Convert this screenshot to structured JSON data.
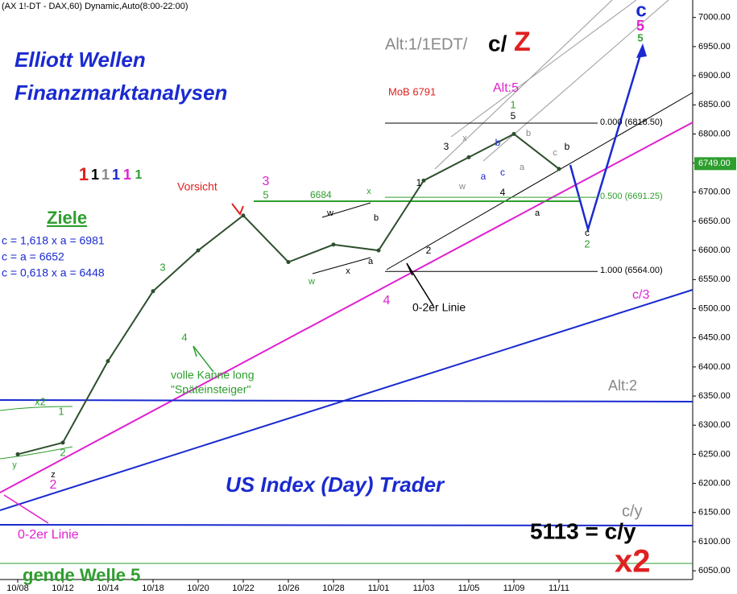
{
  "chart_data": {
    "type": "line",
    "header": "(AX 1!-DT - DAX,60) Dynamic,Auto(8:00-22:00)",
    "categories": [
      "10/08",
      "10/12",
      "10/14",
      "10/18",
      "10/20",
      "10/22",
      "10/26",
      "10/28",
      "11/01",
      "11/03",
      "11/05",
      "11/09",
      "11/11"
    ],
    "series": [
      {
        "name": "DAX",
        "color": "#2d4f2d",
        "values": [
          6250,
          6270,
          6410,
          6530,
          6600,
          6660,
          6580,
          6610,
          6600,
          6720,
          6760,
          6800,
          6740
        ]
      }
    ],
    "ylim": [
      6035,
      7030
    ],
    "yticks": [
      {
        "value": 6050,
        "label": "6050.00"
      },
      {
        "value": 6100,
        "label": "6100.00"
      },
      {
        "value": 6150,
        "label": "6150.00"
      },
      {
        "value": 6200,
        "label": "6200.00"
      },
      {
        "value": 6250,
        "label": "6250.00"
      },
      {
        "value": 6300,
        "label": "6300.00"
      },
      {
        "value": 6350,
        "label": "6350.00"
      },
      {
        "value": 6400,
        "label": "6400.00"
      },
      {
        "value": 6450,
        "label": "6450.00"
      },
      {
        "value": 6500,
        "label": "6500.00"
      },
      {
        "value": 6550,
        "label": "6550.00"
      },
      {
        "value": 6600,
        "label": "6600.00"
      },
      {
        "value": 6650,
        "label": "6650.00"
      },
      {
        "value": 6700,
        "label": "6700.00"
      },
      {
        "value": 6750,
        "label": "6750.00"
      },
      {
        "value": 6800,
        "label": "6800.00"
      },
      {
        "value": 6850,
        "label": "6850.00"
      },
      {
        "value": 6900,
        "label": "6900.00"
      },
      {
        "value": 6950,
        "label": "6950.00"
      },
      {
        "value": 7000,
        "label": "7000.00"
      }
    ],
    "last": {
      "value": 6749,
      "label": "6749.00",
      "color": "#2e9e2e"
    },
    "fib_levels": [
      {
        "value": 6818.5,
        "label": "0.000 (6818.50)"
      },
      {
        "value": 6691.25,
        "label": "0.500 (6691.25)"
      },
      {
        "value": 6564,
        "label": "1.000 (6564.00)"
      }
    ],
    "annotations": [
      "Elliott Wellen",
      "Finanzmarktanalysen",
      "Alt:1/1EDT/",
      "c/",
      "Z",
      "MoB 6791",
      "Alt:5",
      "Vorsicht",
      "Ziele",
      "c = 1,618 x a = 6981",
      "c = a = 6652",
      "c = 0,618 x a = 6448",
      "volle Kanne long",
      "\"Späteinsteiger\"",
      "0-2er Linie",
      "0-2er Linie",
      "US Index (Day) Trader",
      "Alt:2",
      "c/3",
      "c/y",
      "5113 = c/y",
      "x2",
      "gende Welle 5",
      "6684"
    ],
    "wave_labels": [
      "c",
      "5",
      "5",
      "1",
      "5",
      "3",
      "5",
      "4",
      "3",
      "4",
      "2",
      "1",
      "x2",
      "y",
      "z",
      "2",
      "c",
      "2",
      "a",
      "b",
      "3",
      "2",
      "1",
      "w",
      "x",
      "a",
      "b",
      "x",
      "w",
      "a",
      "b",
      "c",
      "x",
      "w",
      "4",
      "a",
      "b",
      "c",
      "1",
      "1",
      "1",
      "1",
      "1",
      "1"
    ]
  }
}
